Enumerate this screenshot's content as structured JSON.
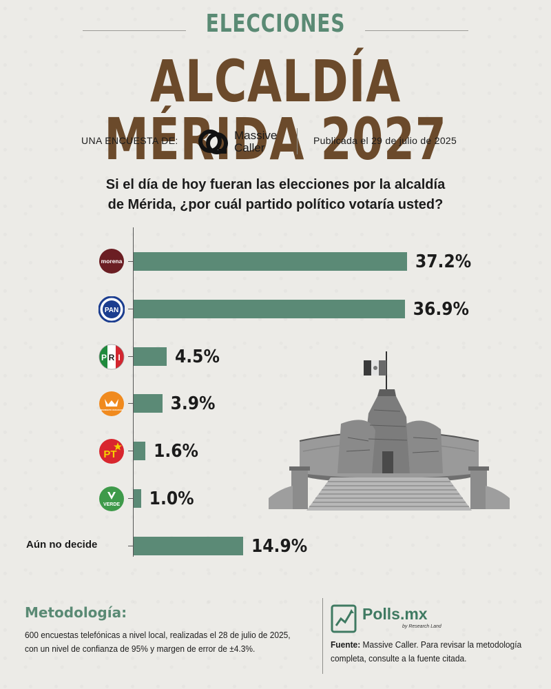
{
  "header": {
    "kicker": "ELECCIONES",
    "title": "ALCALDÍA MÉRIDA 2027",
    "byline": "UNA ENCUESTA DE:",
    "pollster_name_line1": "Massive",
    "pollster_name_line2": "Caller",
    "published": "Publicada el 29 de julio de 2025"
  },
  "question": {
    "line1": "Si el día de hoy fueran las elecciones por la alcaldía",
    "line2": "de Mérida, ¿por cuál partido político votaría usted?"
  },
  "chart_data": {
    "type": "bar",
    "orientation": "horizontal",
    "categories": [
      "morena",
      "PAN",
      "PRI",
      "Movimiento Ciudadano",
      "PT",
      "VERDE",
      "Aún no decide"
    ],
    "values": [
      37.2,
      36.9,
      4.5,
      3.9,
      1.6,
      1.0,
      14.9
    ],
    "value_labels": [
      "37.2%",
      "36.9%",
      "4.5%",
      "3.9%",
      "1.6%",
      "1.0%",
      "14.9%"
    ],
    "text_label_for_last": "Aún no decide",
    "bar_color": "#5b8a76",
    "xlim": [
      0,
      37.2
    ]
  },
  "party_logos": {
    "morena": {
      "text": "morena",
      "bg": "#6b1e23"
    },
    "pan": {
      "text": "PAN",
      "bg": "#1b3d8f"
    },
    "pri": {
      "letters": [
        "P",
        "R",
        "I"
      ],
      "colors": [
        "#1e8a3c",
        "#ffffff",
        "#d32630"
      ]
    },
    "mc": {
      "text": "MOVIMIENTO CIUDADANO",
      "bg": "#f08a1e"
    },
    "pt": {
      "text": "PT",
      "bg": "#d8262e",
      "star": "#f5d100"
    },
    "verde": {
      "text": "VERDE",
      "bg": "#3e9a4a"
    }
  },
  "footer": {
    "methodology_title": "Metodología:",
    "methodology_text": "600 encuestas telefónicas a nivel local, realizadas el 28 de julio de 2025, con un nivel de confianza de 95% y margen de error de ±4.3%.",
    "brand": "Polls.mx",
    "brand_sub": "by Research Land",
    "source_label": "Fuente:",
    "source_text": " Massive Caller. Para revisar la metodología completa, consulte a la fuente citada."
  },
  "colors": {
    "accent_green": "#5a8a74",
    "title_brown": "#6b4a2b",
    "background": "#ecebe7"
  }
}
